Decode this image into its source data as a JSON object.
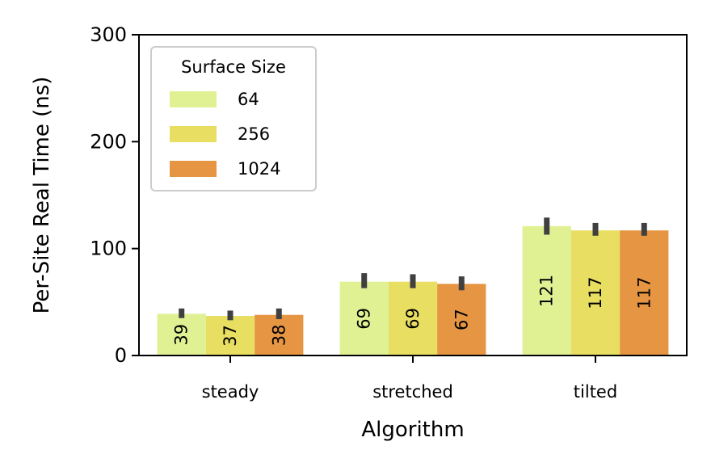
{
  "chart_data": {
    "type": "bar",
    "xlabel": "Algorithm",
    "ylabel": "Per-Site Real Time (ns)",
    "categories": [
      "steady",
      "stretched",
      "tilted"
    ],
    "ylim": [
      0,
      300
    ],
    "yticks": [
      0,
      100,
      200,
      300
    ],
    "legend": {
      "title": "Surface Size",
      "placement": "upper-left"
    },
    "series": [
      {
        "name": "64",
        "color": "#e0f194",
        "values": [
          39,
          69,
          121
        ],
        "labels": [
          "39",
          "69",
          "121"
        ],
        "err_low": [
          35,
          63,
          113
        ],
        "err_high": [
          44,
          77,
          129
        ]
      },
      {
        "name": "256",
        "color": "#e8de62",
        "values": [
          37,
          69,
          117
        ],
        "labels": [
          "37",
          "69",
          "117"
        ],
        "err_low": [
          33,
          63,
          112
        ],
        "err_high": [
          42,
          76,
          124
        ]
      },
      {
        "name": "1024",
        "color": "#e69543",
        "values": [
          38,
          67,
          117
        ],
        "labels": [
          "38",
          "67",
          "117"
        ],
        "err_low": [
          34,
          61,
          112
        ],
        "err_high": [
          44,
          74,
          124
        ]
      }
    ],
    "errorbar_color": "#404040"
  }
}
